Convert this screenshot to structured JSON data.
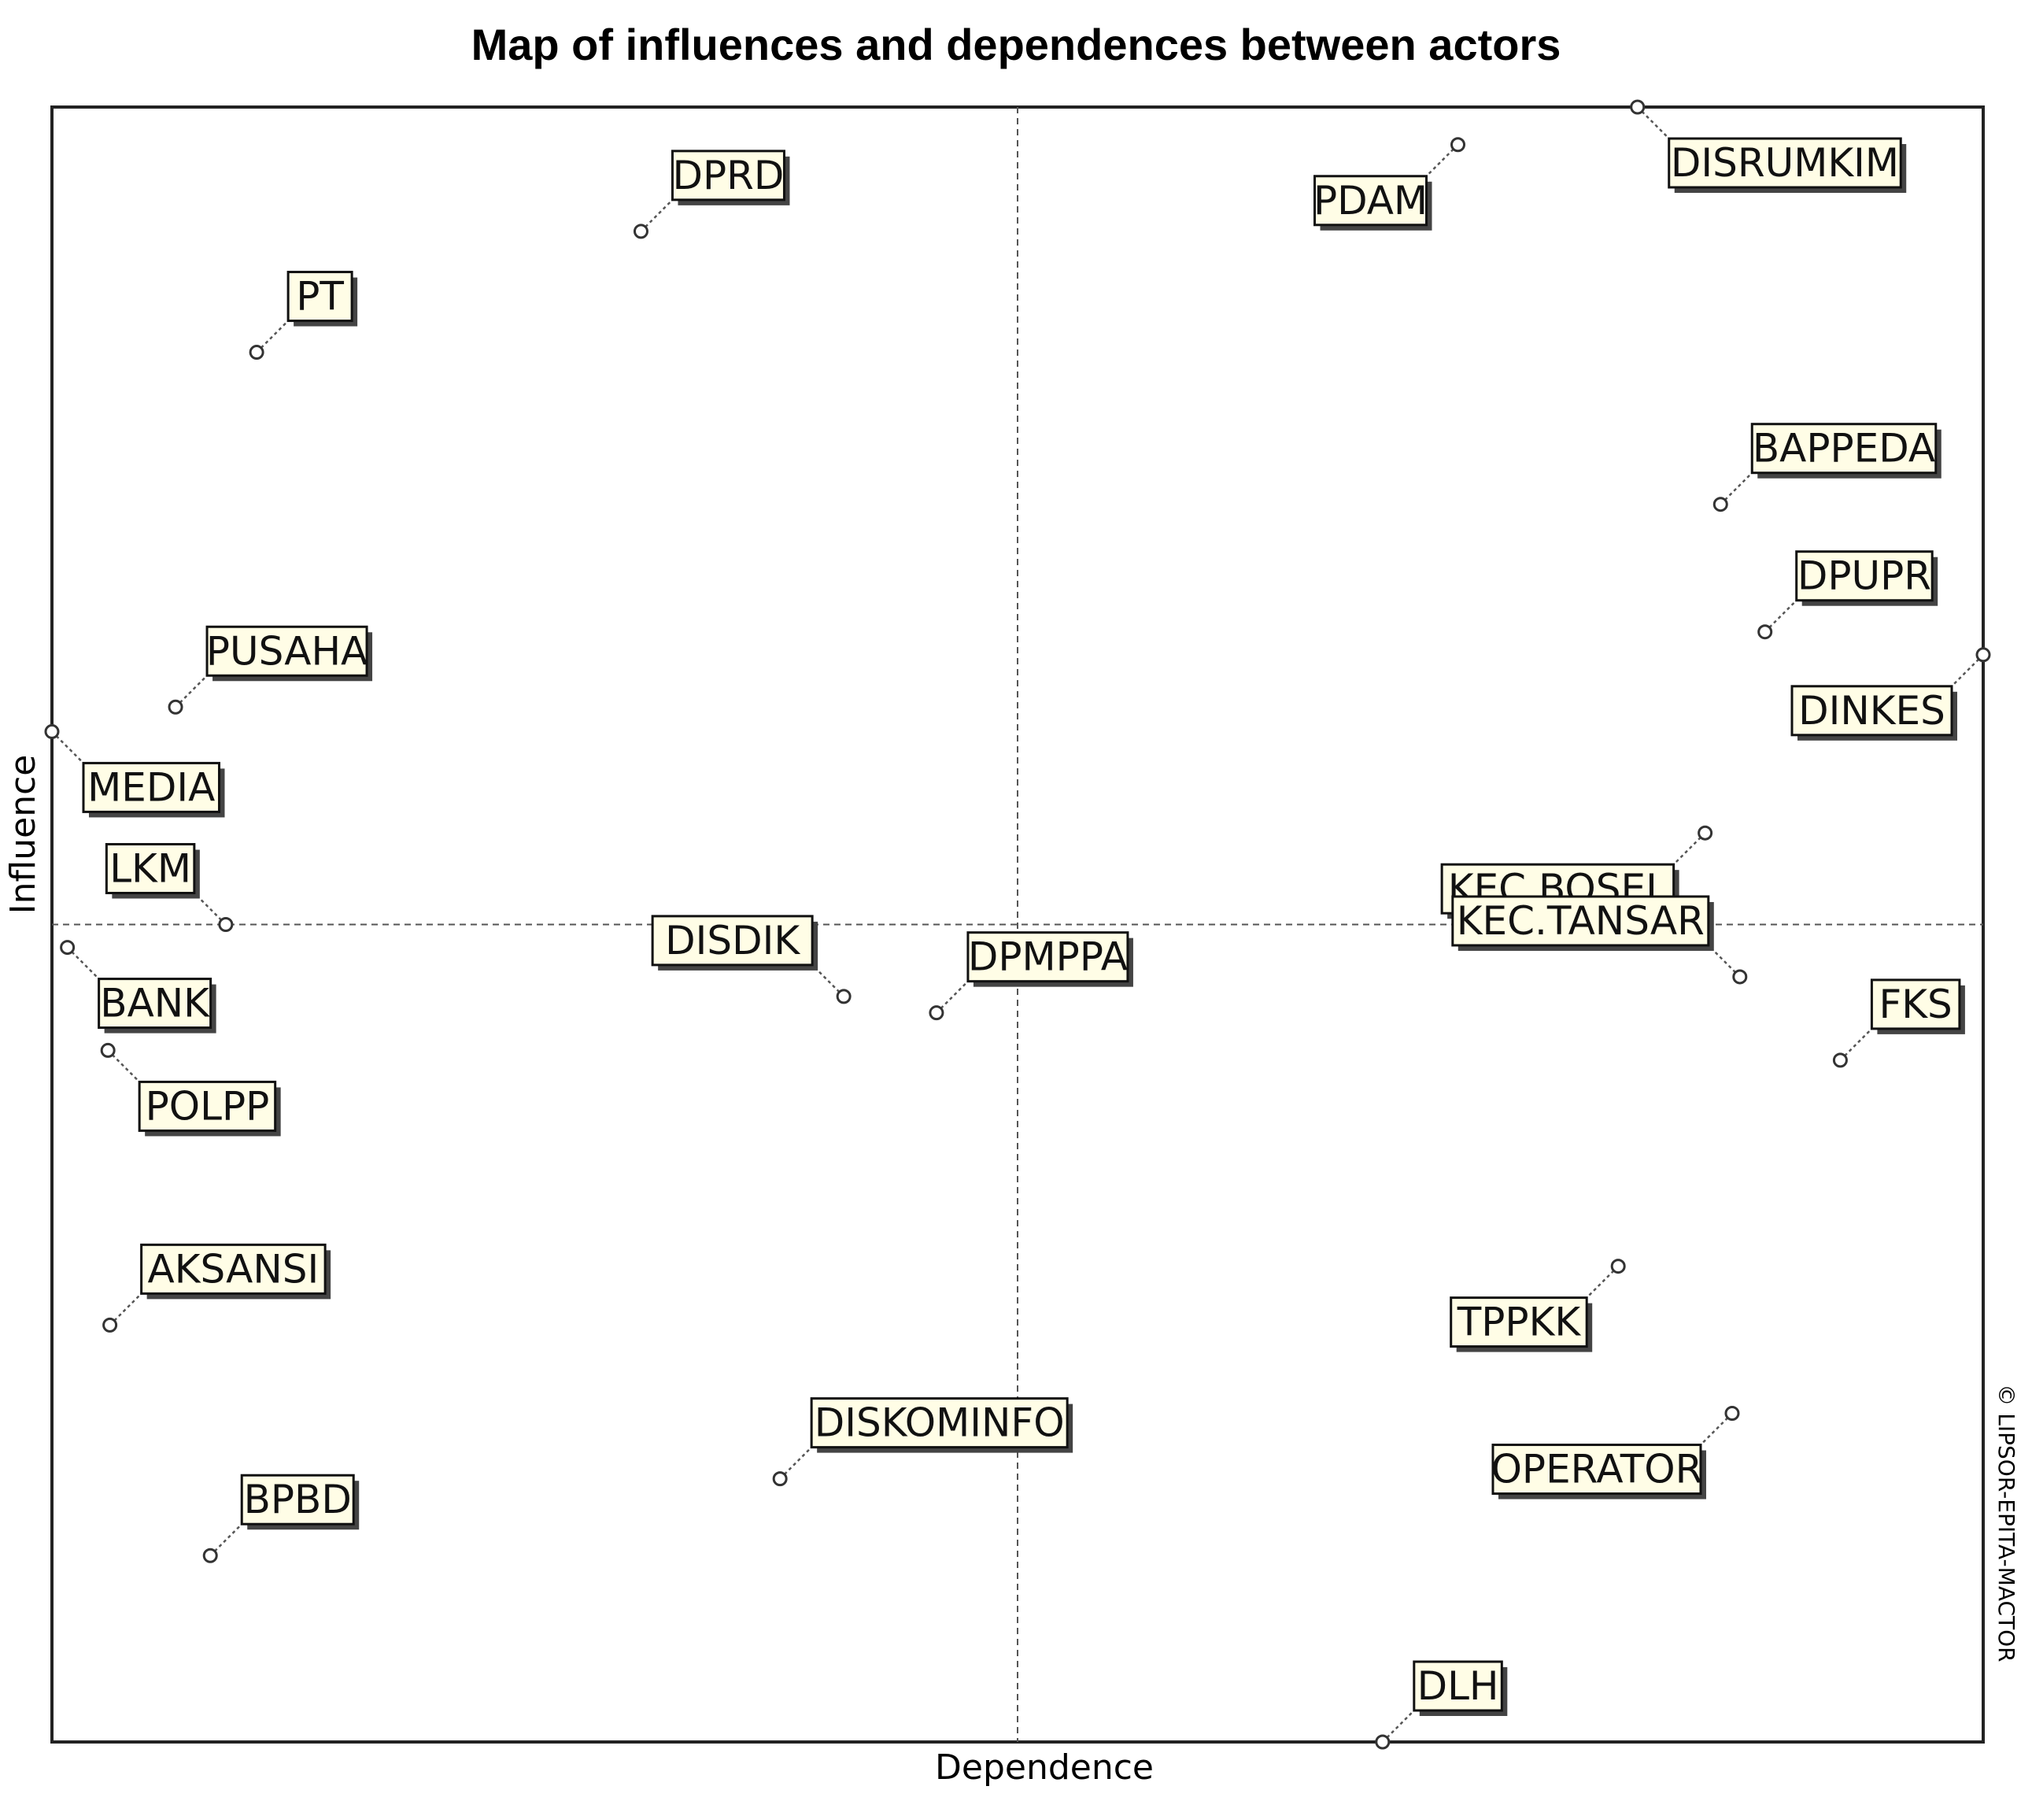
{
  "chart_data": {
    "type": "scatter",
    "title": "Map of influences and dependences between actors",
    "xlabel": "Dependence",
    "ylabel": "Influence",
    "copyright": "© LIPSOR-EPITA-MACTOR",
    "xlim": [
      0,
      1
    ],
    "ylim": [
      0,
      1
    ],
    "quadrant_dividers": {
      "x": 0.5,
      "y": 0.5
    },
    "grid": false,
    "points": [
      {
        "name": "DISRUMKIM",
        "x": 0.821,
        "y": 1.0,
        "label_pos": "lower-right"
      },
      {
        "name": "PDAM",
        "x": 0.728,
        "y": 0.977,
        "label_pos": "lower-left"
      },
      {
        "name": "DPRD",
        "x": 0.305,
        "y": 0.924,
        "label_pos": "upper-right"
      },
      {
        "name": "PT",
        "x": 0.106,
        "y": 0.85,
        "label_pos": "upper-right"
      },
      {
        "name": "BAPPEDA",
        "x": 0.864,
        "y": 0.757,
        "label_pos": "upper-right"
      },
      {
        "name": "DPUPR",
        "x": 0.887,
        "y": 0.679,
        "label_pos": "upper-right"
      },
      {
        "name": "DINKES",
        "x": 1.0,
        "y": 0.665,
        "label_pos": "lower-left"
      },
      {
        "name": "PUSAHA",
        "x": 0.064,
        "y": 0.633,
        "label_pos": "upper-right"
      },
      {
        "name": "MEDIA",
        "x": 0.0,
        "y": 0.618,
        "label_pos": "lower-right"
      },
      {
        "name": "KEC.BOSEL",
        "x": 0.856,
        "y": 0.556,
        "label_pos": "lower-left"
      },
      {
        "name": "LKM",
        "x": 0.09,
        "y": 0.5,
        "label_pos": "upper-left"
      },
      {
        "name": "DISDIK",
        "x": 0.41,
        "y": 0.456,
        "label_pos": "upper-left"
      },
      {
        "name": "BANK",
        "x": 0.008,
        "y": 0.486,
        "label_pos": "lower-right"
      },
      {
        "name": "DPMPPA",
        "x": 0.458,
        "y": 0.446,
        "label_pos": "upper-right"
      },
      {
        "name": "KEC.TANSAR",
        "x": 0.874,
        "y": 0.468,
        "label_pos": "upper-left"
      },
      {
        "name": "FKS",
        "x": 0.926,
        "y": 0.417,
        "label_pos": "upper-right"
      },
      {
        "name": "POLPP",
        "x": 0.029,
        "y": 0.423,
        "label_pos": "lower-right"
      },
      {
        "name": "AKSANSI",
        "x": 0.03,
        "y": 0.255,
        "label_pos": "upper-right"
      },
      {
        "name": "TPPKK",
        "x": 0.811,
        "y": 0.291,
        "label_pos": "lower-left"
      },
      {
        "name": "OPERATOR",
        "x": 0.87,
        "y": 0.201,
        "label_pos": "lower-left"
      },
      {
        "name": "DISKOMINFO",
        "x": 0.377,
        "y": 0.161,
        "label_pos": "upper-right"
      },
      {
        "name": "BPBD",
        "x": 0.082,
        "y": 0.114,
        "label_pos": "upper-right"
      },
      {
        "name": "DLH",
        "x": 0.689,
        "y": 0.0,
        "label_pos": "upper-right"
      }
    ]
  }
}
